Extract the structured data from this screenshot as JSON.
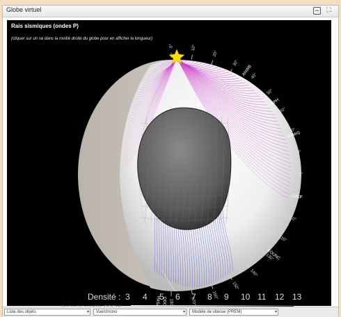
{
  "window": {
    "title": "Globe virtuel",
    "minimize_icon": "minus-square-icon",
    "fullscreen_icon": "expand-icon"
  },
  "panel": {
    "heading": "Rais sismiques (ondes P)",
    "instruction": "(cliquer sur un rai dans la moitié droite du globe pour en afficher la longueur)"
  },
  "globe": {
    "distance_labels": [
      "0°",
      "10°",
      "20°",
      "30°",
      "40°",
      "50°",
      "60°",
      "70°",
      "80°",
      "90°",
      "100°",
      "110°",
      "120°",
      "130°",
      "140°",
      "150°",
      "160°",
      "170°",
      "180°"
    ],
    "station_labels": [
      "ANWB",
      "BPH",
      "ANWG",
      "CALF",
      "KOUNC",
      "ODC",
      "PASA-US"
    ],
    "source_marker": "star-icon",
    "colors": {
      "background": "#000000",
      "ray_near": "#cc33cc",
      "ray_far": "#5555ee",
      "core": "#555555",
      "star": "#ffdd00"
    }
  },
  "density": {
    "label": "Densité :",
    "values": [
      "3",
      "4",
      "5",
      "6",
      "7",
      "8",
      "9",
      "10",
      "11",
      "12",
      "13"
    ],
    "note": "(selon le modèle PREM)"
  },
  "bottom_selects": [
    {
      "label": "Liste des objets",
      "icon": "dropdown-icon"
    },
    {
      "label": "Vue/chrono",
      "icon": "dropdown-icon"
    },
    {
      "label": "Modèle de vitesse (PREM)",
      "icon": "dropdown-icon"
    }
  ]
}
